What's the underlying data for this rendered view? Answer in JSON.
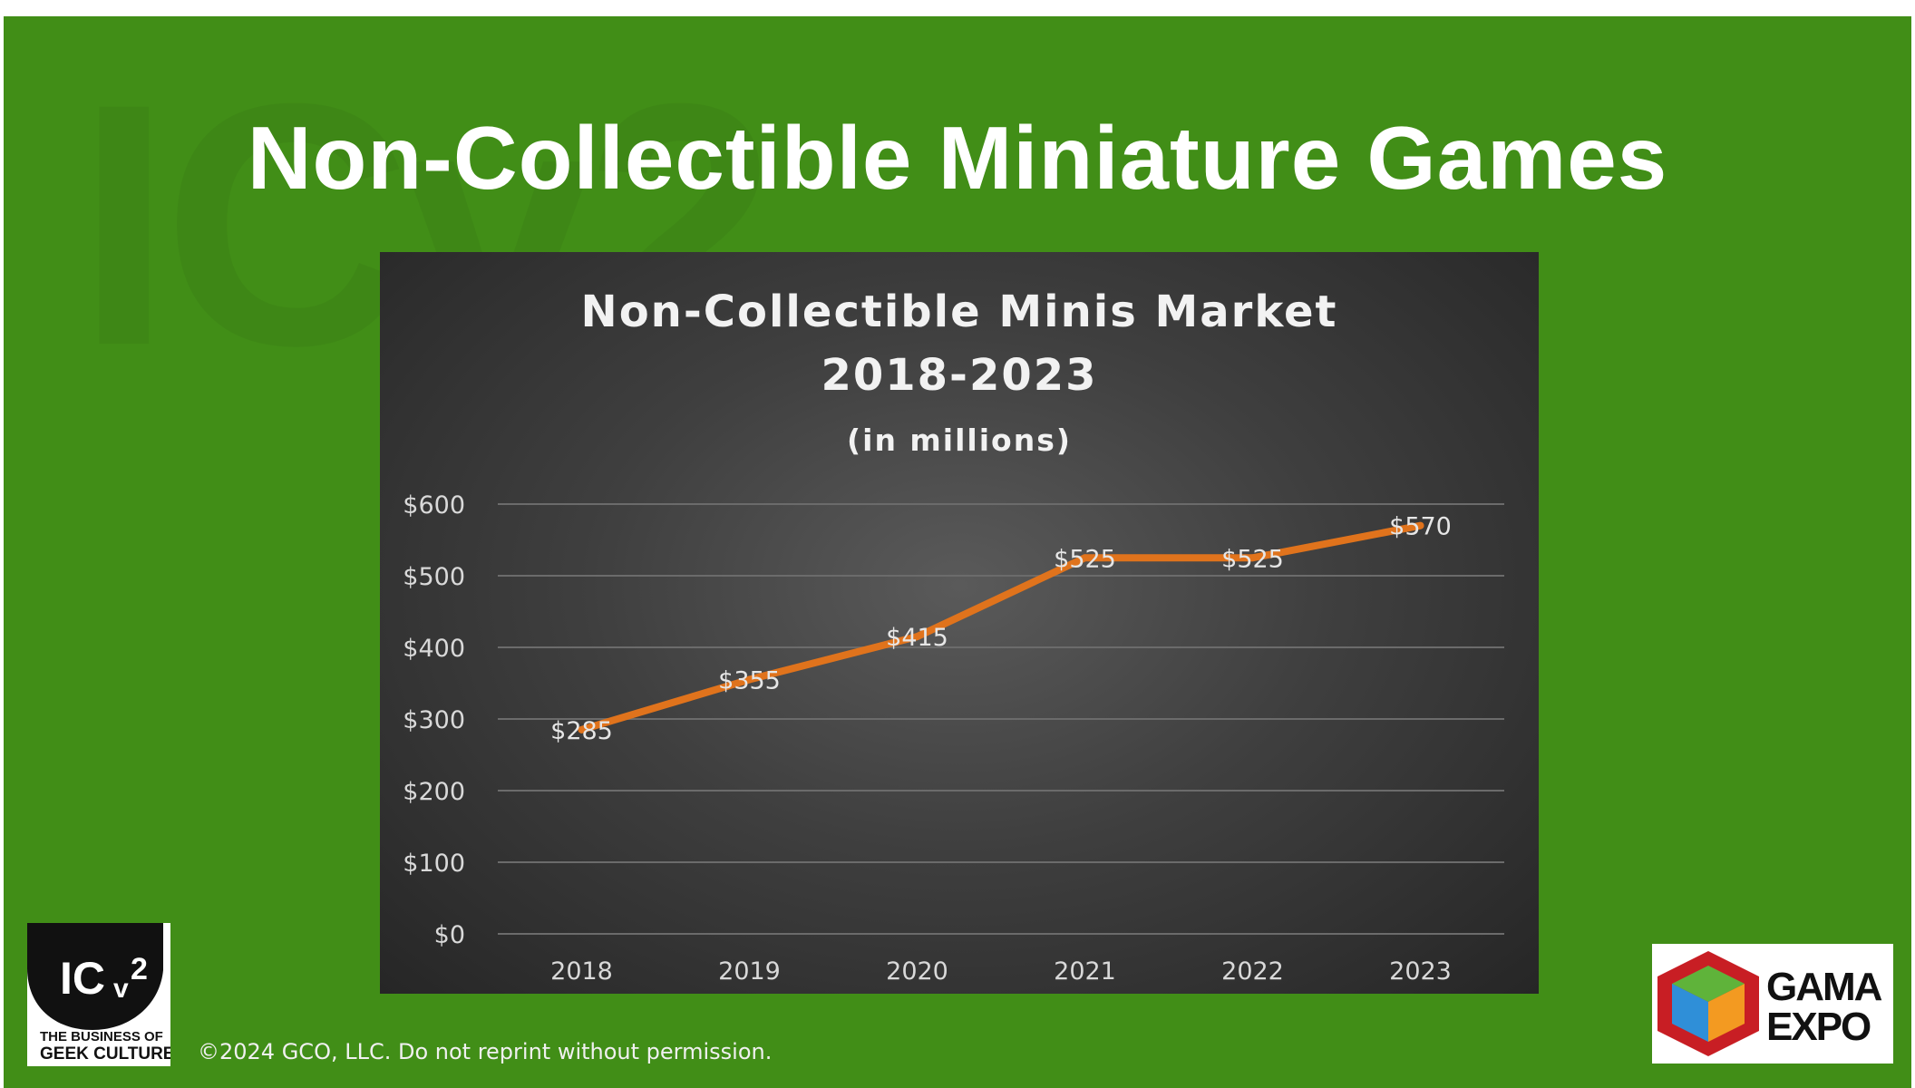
{
  "slide": {
    "title": "Non-Collectible Miniature Games",
    "copyright": "©2024 GCO, LLC. Do not reprint without permission.",
    "background_color": "#418e17"
  },
  "logos": {
    "left": {
      "name": "ICv2",
      "text_main": "ICv2",
      "tagline_1": "THE BUSINESS OF",
      "tagline_2": "GEEK CULTURE"
    },
    "right": {
      "name": "GAMA EXPO",
      "text_1": "GAMA",
      "text_2": "EXPO"
    }
  },
  "chart_data": {
    "type": "line",
    "title_lines": [
      "Non-Collectible Minis Market",
      "2018-2023",
      "(in millions)"
    ],
    "categories": [
      "2018",
      "2019",
      "2020",
      "2021",
      "2022",
      "2023"
    ],
    "series": [
      {
        "values": [
          285,
          355,
          415,
          525,
          525,
          570
        ],
        "color": "#e0731c"
      }
    ],
    "data_labels": [
      "$285",
      "$355",
      "$415",
      "$525",
      "$525",
      "$570"
    ],
    "y_ticks": [
      {
        "value": 0,
        "label": "$0"
      },
      {
        "value": 100,
        "label": "$100"
      },
      {
        "value": 200,
        "label": "$200"
      },
      {
        "value": 300,
        "label": "$300"
      },
      {
        "value": 400,
        "label": "$400"
      },
      {
        "value": 500,
        "label": "$500"
      },
      {
        "value": 600,
        "label": "$600"
      }
    ],
    "ylim": [
      0,
      600
    ],
    "grid": true,
    "legend": "none"
  }
}
